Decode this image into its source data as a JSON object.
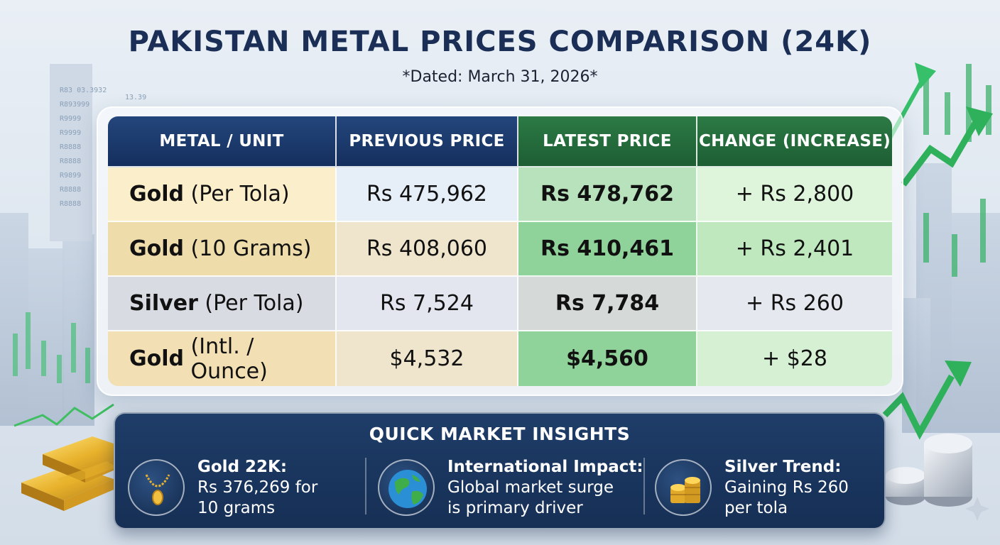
{
  "title": "PAKISTAN METAL PRICES COMPARISON (24K)",
  "subtitle": "*Dated: March 31, 2026*",
  "table": {
    "headers": [
      "METAL / UNIT",
      "PREVIOUS PRICE",
      "LATEST PRICE",
      "CHANGE (INCREASE)"
    ],
    "rows": [
      {
        "metal": "Gold",
        "unit": "(Per Tola)",
        "previous": "Rs 475,962",
        "latest": "Rs 478,762",
        "change": "+ Rs 2,800"
      },
      {
        "metal": "Gold",
        "unit": "(10 Grams)",
        "previous": "Rs 408,060",
        "latest": "Rs 410,461",
        "change": "+ Rs 2,401"
      },
      {
        "metal": "Silver",
        "unit": "(Per Tola)",
        "previous": "Rs 7,524",
        "latest": "Rs 7,784",
        "change": "+ Rs 260"
      },
      {
        "metal": "Gold",
        "unit": "(Intl. / Ounce)",
        "previous": "$4,532",
        "latest": "$4,560",
        "change": "+ $28"
      }
    ]
  },
  "insights": {
    "title": "QUICK MARKET INSIGHTS",
    "items": [
      {
        "icon": "gold-necklace-icon",
        "head": "Gold 22K:",
        "line1": "Rs 376,269 for",
        "line2": "10 grams"
      },
      {
        "icon": "globe-icon",
        "head": "International Impact:",
        "line1": "Global market surge",
        "line2": "is primary driver"
      },
      {
        "icon": "coin-stack-icon",
        "head": "Silver Trend:",
        "line1": "Gaining Rs 260",
        "line2": "per tola"
      }
    ]
  },
  "colors": {
    "title": "#1b2f56",
    "header_blue": "#1e3d6e",
    "header_green": "#26703f",
    "insights_bg": "#1a365f"
  }
}
